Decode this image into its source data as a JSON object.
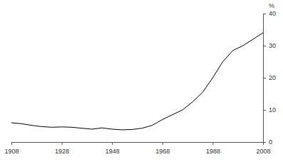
{
  "chart_data": {
    "type": "line",
    "y_label": "%",
    "x": [
      1908,
      1912,
      1916,
      1920,
      1924,
      1928,
      1932,
      1936,
      1940,
      1944,
      1948,
      1952,
      1956,
      1960,
      1964,
      1968,
      1972,
      1976,
      1980,
      1984,
      1988,
      1992,
      1996,
      2000,
      2004,
      2008
    ],
    "values": [
      6.0,
      5.7,
      5.2,
      4.8,
      4.6,
      4.7,
      4.6,
      4.3,
      4.0,
      4.4,
      4.0,
      3.8,
      3.9,
      4.3,
      5.2,
      7.0,
      8.5,
      10.0,
      12.5,
      15.5,
      20.0,
      25.0,
      28.5,
      30.0,
      32.0,
      34.0
    ],
    "color": "#000000",
    "xlim": [
      1908,
      2008
    ],
    "xticks": [
      1908,
      1928,
      1948,
      1968,
      1988,
      2008
    ],
    "ylim": [
      0,
      40
    ],
    "yticks": [
      0,
      10,
      20,
      30,
      40
    ],
    "grid": false
  }
}
